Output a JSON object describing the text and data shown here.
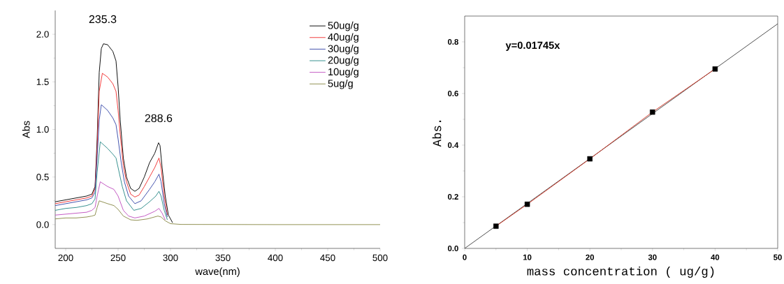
{
  "chart_data": [
    {
      "type": "line",
      "xlabel": "wave(nm)",
      "ylabel": "Abs",
      "xlim": [
        190,
        500
      ],
      "ylim": [
        -0.25,
        2.25
      ],
      "xticks": [
        200,
        250,
        300,
        350,
        400,
        450,
        500
      ],
      "yticks": [
        {
          "value": 0,
          "label": "0.0"
        },
        {
          "value": 0.5,
          "label": "0.5"
        },
        {
          "value": 1,
          "label": "1.0"
        },
        {
          "value": 1.5,
          "label": "1.5"
        },
        {
          "value": 2,
          "label": "2.0"
        }
      ],
      "legend": "top right",
      "annotations": [
        {
          "text": "235.3",
          "x": 235.3,
          "y": 1.9
        },
        {
          "text": "288.6",
          "x": 288.6,
          "y": 0.86
        }
      ],
      "series": [
        {
          "name": "50ug/g",
          "color": "#000000",
          "x": [
            190,
            200,
            210,
            220,
            225,
            228,
            230,
            232,
            234,
            236,
            240,
            245,
            248,
            250,
            252,
            255,
            258,
            262,
            266,
            270,
            275,
            280,
            285,
            288.6,
            290,
            292,
            295,
            298,
            302
          ],
          "values": [
            0.24,
            0.26,
            0.28,
            0.3,
            0.32,
            0.4,
            0.9,
            1.6,
            1.85,
            1.9,
            1.89,
            1.82,
            1.72,
            1.45,
            1.1,
            0.7,
            0.5,
            0.38,
            0.35,
            0.38,
            0.5,
            0.65,
            0.75,
            0.86,
            0.83,
            0.6,
            0.3,
            0.1,
            0.02
          ]
        },
        {
          "name": "40ug/g",
          "color": "#f03030",
          "x": [
            190,
            200,
            210,
            220,
            225,
            228,
            230,
            232,
            235,
            240,
            245,
            248,
            250,
            252,
            255,
            258,
            262,
            266,
            270,
            275,
            280,
            285,
            289,
            291,
            294,
            297
          ],
          "values": [
            0.22,
            0.24,
            0.26,
            0.28,
            0.3,
            0.38,
            0.8,
            1.4,
            1.59,
            1.55,
            1.48,
            1.4,
            1.2,
            0.95,
            0.62,
            0.45,
            0.32,
            0.29,
            0.31,
            0.4,
            0.5,
            0.6,
            0.7,
            0.6,
            0.3,
            0.1
          ]
        },
        {
          "name": "30ug/g",
          "color": "#3848a8",
          "x": [
            190,
            200,
            210,
            220,
            225,
            228,
            230,
            232,
            234,
            240,
            245,
            248,
            250,
            253,
            256,
            260,
            266,
            272,
            280,
            285,
            289,
            291,
            294,
            297
          ],
          "values": [
            0.2,
            0.22,
            0.24,
            0.26,
            0.28,
            0.34,
            0.7,
            1.1,
            1.26,
            1.2,
            1.12,
            1.05,
            0.9,
            0.65,
            0.45,
            0.3,
            0.22,
            0.25,
            0.37,
            0.45,
            0.53,
            0.45,
            0.22,
            0.08
          ]
        },
        {
          "name": "20ug/g",
          "color": "#2a8a88",
          "x": [
            190,
            200,
            210,
            220,
            225,
            228,
            230,
            233,
            240,
            245,
            248,
            250,
            254,
            258,
            265,
            272,
            280,
            286,
            289,
            291,
            294,
            297
          ],
          "values": [
            0.15,
            0.17,
            0.18,
            0.2,
            0.22,
            0.27,
            0.55,
            0.87,
            0.8,
            0.74,
            0.7,
            0.6,
            0.4,
            0.25,
            0.15,
            0.17,
            0.24,
            0.3,
            0.35,
            0.3,
            0.15,
            0.05
          ]
        },
        {
          "name": "10ug/g",
          "color": "#c050c0",
          "x": [
            190,
            200,
            210,
            220,
            225,
            228,
            230,
            233,
            240,
            246,
            250,
            255,
            260,
            266,
            275,
            285,
            289,
            292,
            295
          ],
          "values": [
            0.1,
            0.11,
            0.12,
            0.13,
            0.15,
            0.18,
            0.3,
            0.45,
            0.4,
            0.37,
            0.3,
            0.15,
            0.09,
            0.07,
            0.09,
            0.14,
            0.17,
            0.12,
            0.05
          ]
        },
        {
          "name": "5ug/g",
          "color": "#8a8a48",
          "x": [
            190,
            200,
            210,
            220,
            225,
            228,
            230,
            232,
            240,
            246,
            250,
            255,
            262,
            268,
            278,
            288,
            291,
            295,
            300,
            310,
            400,
            500
          ],
          "values": [
            0.06,
            0.07,
            0.07,
            0.08,
            0.09,
            0.1,
            0.18,
            0.25,
            0.22,
            0.2,
            0.16,
            0.09,
            0.05,
            0.045,
            0.06,
            0.09,
            0.08,
            0.04,
            0.01,
            0.002,
            0,
            0
          ]
        }
      ]
    },
    {
      "type": "scatter",
      "xlabel": "mass concentration ( ug/g)",
      "ylabel": "Abs.",
      "xlim": [
        0,
        50
      ],
      "ylim": [
        0,
        0.9
      ],
      "xticks": [
        0,
        10,
        20,
        30,
        40,
        50
      ],
      "yticks": [
        {
          "value": 0,
          "label": "0.0"
        },
        {
          "value": 0.2,
          "label": "0.2"
        },
        {
          "value": 0.4,
          "label": "0.4"
        },
        {
          "value": 0.6,
          "label": "0.6"
        },
        {
          "value": 0.8,
          "label": "0.8"
        }
      ],
      "annotations": [
        "y=0.01745x"
      ],
      "series": [
        {
          "type": "line",
          "color": "#444444",
          "x": [
            0,
            50
          ],
          "values": [
            0,
            0.87
          ]
        },
        {
          "type": "line",
          "color": "#d03020",
          "x": [
            5,
            10,
            20,
            30,
            40
          ],
          "values": [
            0.086,
            0.171,
            0.347,
            0.528,
            0.695
          ]
        },
        {
          "type": "scatter",
          "color": "#000000",
          "marker": "square",
          "x": [
            5,
            10,
            20,
            30,
            40
          ],
          "values": [
            0.086,
            0.171,
            0.347,
            0.528,
            0.695
          ]
        }
      ]
    }
  ]
}
